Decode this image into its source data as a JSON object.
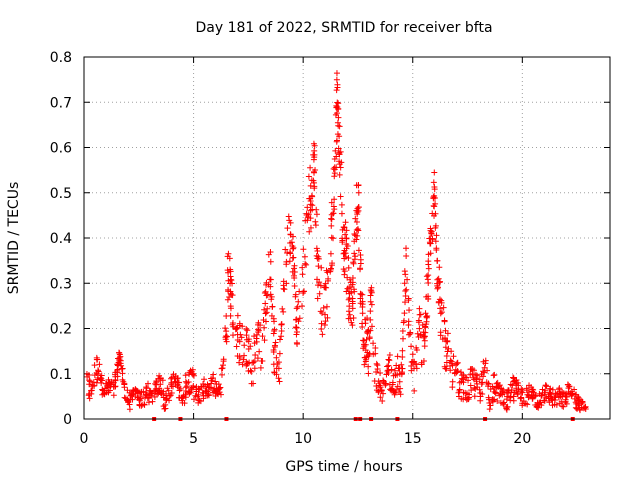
{
  "chart_data": {
    "type": "scatter",
    "title": "Day 181 of 2022, SRMTID for receiver bfta",
    "xlabel": "GPS time / hours",
    "ylabel": "SRMTID / TECUs",
    "xlim": [
      0,
      24
    ],
    "ylim": [
      0,
      0.8
    ],
    "xticks": [
      0,
      5,
      10,
      15,
      20
    ],
    "yticks": [
      0,
      0.1,
      0.2,
      0.3,
      0.4,
      0.5,
      0.6,
      0.7,
      0.8
    ],
    "grid": true,
    "legend": "none",
    "point_color": "#ff0000",
    "marker": "plus",
    "series": [
      {
        "name": "SRMTID",
        "x": [
          0.1,
          0.3,
          0.5,
          0.7,
          0.9,
          1.1,
          1.3,
          1.5,
          1.6,
          1.7,
          1.9,
          2.1,
          2.3,
          2.5,
          2.7,
          2.9,
          3.1,
          3.3,
          3.5,
          3.7,
          3.9,
          4.1,
          4.3,
          4.5,
          4.7,
          4.9,
          5.1,
          5.3,
          5.5,
          5.7,
          5.9,
          6.1,
          6.3,
          6.5,
          6.6,
          6.7,
          6.9,
          7.1,
          7.3,
          7.5,
          7.7,
          7.9,
          8.1,
          8.3,
          8.5,
          8.6,
          8.7,
          8.9,
          9.1,
          9.3,
          9.5,
          9.6,
          9.7,
          9.9,
          10.1,
          10.3,
          10.4,
          10.5,
          10.6,
          10.7,
          10.9,
          11.1,
          11.3,
          11.4,
          11.5,
          11.55,
          11.6,
          11.7,
          11.8,
          11.9,
          12.0,
          12.1,
          12.2,
          12.3,
          12.4,
          12.5,
          12.6,
          12.7,
          12.8,
          12.9,
          13.0,
          13.1,
          13.3,
          13.5,
          13.7,
          13.9,
          14.1,
          14.3,
          14.5,
          14.6,
          14.7,
          14.9,
          15.1,
          15.3,
          15.5,
          15.6,
          15.7,
          15.8,
          15.9,
          16.0,
          16.1,
          16.2,
          16.3,
          16.5,
          16.7,
          16.9,
          17.1,
          17.3,
          17.5,
          17.7,
          17.9,
          18.1,
          18.3,
          18.5,
          18.7,
          18.9,
          19.1,
          19.3,
          19.5,
          19.7,
          19.9,
          20.1,
          20.3,
          20.5,
          20.7,
          20.9,
          21.1,
          21.3,
          21.5,
          21.7,
          21.9,
          22.1,
          22.3,
          22.5,
          22.7
        ],
        "y": [
          0.08,
          0.06,
          0.1,
          0.12,
          0.05,
          0.07,
          0.06,
          0.1,
          0.14,
          0.12,
          0.05,
          0.04,
          0.06,
          0.05,
          0.04,
          0.06,
          0.05,
          0.07,
          0.08,
          0.04,
          0.06,
          0.09,
          0.07,
          0.05,
          0.08,
          0.09,
          0.06,
          0.05,
          0.07,
          0.06,
          0.08,
          0.05,
          0.09,
          0.22,
          0.34,
          0.28,
          0.2,
          0.16,
          0.18,
          0.15,
          0.12,
          0.2,
          0.14,
          0.26,
          0.34,
          0.22,
          0.14,
          0.1,
          0.28,
          0.39,
          0.41,
          0.3,
          0.2,
          0.26,
          0.38,
          0.5,
          0.48,
          0.58,
          0.42,
          0.3,
          0.25,
          0.28,
          0.4,
          0.52,
          0.62,
          0.7,
          0.66,
          0.55,
          0.44,
          0.38,
          0.35,
          0.28,
          0.24,
          0.3,
          0.42,
          0.5,
          0.35,
          0.22,
          0.17,
          0.18,
          0.14,
          0.27,
          0.1,
          0.08,
          0.06,
          0.12,
          0.07,
          0.1,
          0.09,
          0.24,
          0.33,
          0.14,
          0.1,
          0.2,
          0.16,
          0.22,
          0.3,
          0.38,
          0.44,
          0.5,
          0.35,
          0.3,
          0.22,
          0.16,
          0.12,
          0.1,
          0.08,
          0.07,
          0.06,
          0.09,
          0.07,
          0.06,
          0.13,
          0.05,
          0.07,
          0.06,
          0.05,
          0.04,
          0.06,
          0.07,
          0.05,
          0.04,
          0.06,
          0.05,
          0.04,
          0.05,
          0.06,
          0.05,
          0.04,
          0.05,
          0.04,
          0.06,
          0.05,
          0.04,
          0.03
        ],
        "spread": [
          0.03,
          0.03,
          0.03,
          0.02,
          0.02,
          0.02,
          0.02,
          0.02,
          0.01,
          0.02,
          0.02,
          0.01,
          0.01,
          0.02,
          0.02,
          0.02,
          0.02,
          0.02,
          0.03,
          0.02,
          0.02,
          0.02,
          0.02,
          0.03,
          0.03,
          0.03,
          0.02,
          0.02,
          0.02,
          0.02,
          0.02,
          0.03,
          0.03,
          0.08,
          0.06,
          0.06,
          0.06,
          0.06,
          0.05,
          0.05,
          0.05,
          0.06,
          0.05,
          0.06,
          0.05,
          0.06,
          0.04,
          0.04,
          0.06,
          0.06,
          0.06,
          0.06,
          0.05,
          0.07,
          0.08,
          0.08,
          0.06,
          0.07,
          0.08,
          0.07,
          0.06,
          0.07,
          0.08,
          0.08,
          0.08,
          0.05,
          0.06,
          0.08,
          0.08,
          0.08,
          0.08,
          0.08,
          0.07,
          0.08,
          0.08,
          0.08,
          0.07,
          0.06,
          0.05,
          0.05,
          0.04,
          0.06,
          0.03,
          0.03,
          0.02,
          0.04,
          0.03,
          0.04,
          0.04,
          0.06,
          0.05,
          0.05,
          0.04,
          0.06,
          0.05,
          0.06,
          0.06,
          0.05,
          0.06,
          0.04,
          0.06,
          0.06,
          0.06,
          0.05,
          0.04,
          0.04,
          0.03,
          0.03,
          0.03,
          0.03,
          0.03,
          0.03,
          0.02,
          0.03,
          0.03,
          0.02,
          0.02,
          0.02,
          0.03,
          0.02,
          0.02,
          0.02,
          0.02,
          0.02,
          0.02,
          0.02,
          0.02,
          0.02,
          0.02,
          0.02,
          0.02,
          0.02,
          0.02,
          0.02,
          0.01
        ]
      }
    ],
    "gap_markers_x": [
      3.2,
      4.4,
      6.5,
      12.4,
      12.6,
      13.1,
      14.3,
      18.3,
      22.3
    ]
  }
}
